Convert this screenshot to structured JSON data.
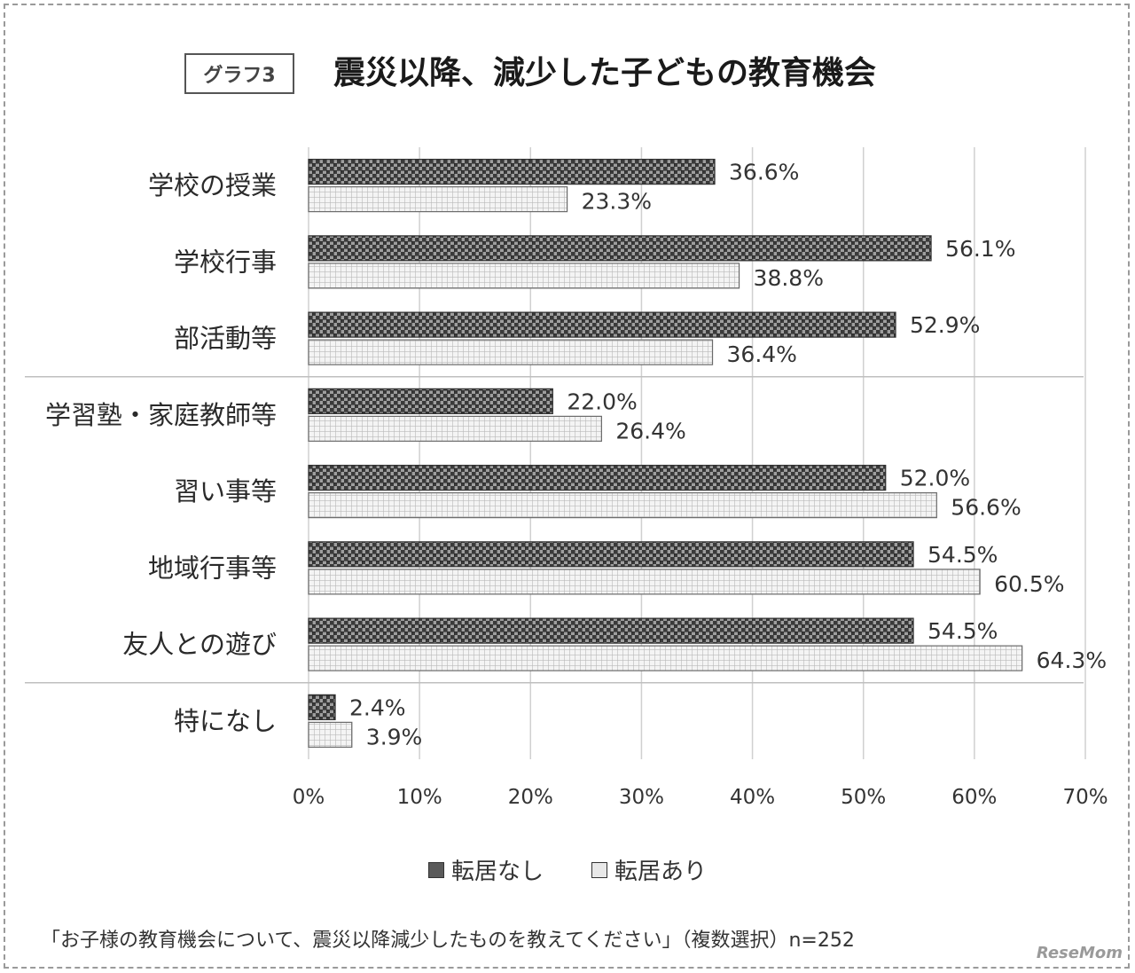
{
  "header": {
    "tag": "グラフ3",
    "title": "震災以降、減少した子どもの教育機会"
  },
  "legend": {
    "series_a": "転居なし",
    "series_b": "転居あり"
  },
  "footnote": "「お子様の教育機会について、震災以降減少したものを教えてください」（複数選択）n=252",
  "watermark": "ReseMom",
  "colors": {
    "series_a_fill": "#595959",
    "series_b_fill": "#d9d9d9",
    "grid": "#d0d0d0",
    "separator": "#bfbfbf"
  },
  "chart_data": {
    "type": "bar",
    "orientation": "horizontal",
    "title": "震災以降、減少した子どもの教育機会",
    "categories": [
      "学校の授業",
      "学校行事",
      "部活動等",
      "学習塾・家庭教師等",
      "習い事等",
      "地域行事等",
      "友人との遊び",
      "特になし"
    ],
    "series": [
      {
        "name": "転居なし",
        "values": [
          36.6,
          56.1,
          52.9,
          22.0,
          52.0,
          54.5,
          54.5,
          2.4
        ]
      },
      {
        "name": "転居あり",
        "values": [
          23.3,
          38.8,
          36.4,
          26.4,
          56.6,
          60.5,
          64.3,
          3.9
        ]
      }
    ],
    "value_labels": {
      "転居なし": [
        "36.6%",
        "56.1%",
        "52.9%",
        "22.0%",
        "52.0%",
        "54.5%",
        "54.5%",
        "2.4%"
      ],
      "転居あり": [
        "23.3%",
        "38.8%",
        "36.4%",
        "26.4%",
        "56.6%",
        "60.5%",
        "64.3%",
        "3.9%"
      ]
    },
    "xticks": [
      "0%",
      "10%",
      "20%",
      "30%",
      "40%",
      "50%",
      "60%",
      "70%"
    ],
    "xlim": [
      0,
      70
    ],
    "grid": true,
    "legend_position": "bottom"
  }
}
